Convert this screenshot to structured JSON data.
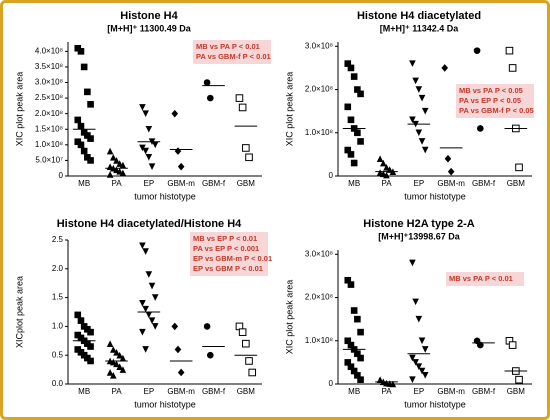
{
  "chart_data": [
    {
      "type": "dot",
      "title": "Histone H4",
      "subtitle": "[M+H]⁺ 11300.49 Da",
      "x_label": "tumor histotype",
      "y_label": "XIC plot peak area",
      "categories": [
        "MB",
        "PA",
        "EP",
        "GBM-m",
        "GBM-f",
        "GBM"
      ],
      "markers": [
        "square",
        "triangle",
        "triangle-down",
        "diamond",
        "circle",
        "open-square"
      ],
      "color": "#000000",
      "points": [
        [
          410000000.0,
          400000000.0,
          350000000.0,
          270000000.0,
          230000000.0,
          180000000.0,
          160000000.0,
          140000000.0,
          130000000.0,
          120000000.0,
          110000000.0,
          100000000.0,
          80000000.0,
          60000000.0,
          50000000.0
        ],
        [
          80000000.0,
          60000000.0,
          50000000.0,
          40000000.0,
          35000000.0,
          30000000.0,
          25000000.0,
          20000000.0,
          15000000.0,
          10000000.0,
          5000000.0
        ],
        [
          220000000.0,
          200000000.0,
          150000000.0,
          110000000.0,
          100000000.0,
          90000000.0,
          80000000.0,
          60000000.0,
          30000000.0
        ],
        [
          200000000.0,
          80000000.0,
          30000000.0
        ],
        [
          300000000.0,
          250000000.0
        ],
        [
          250000000.0,
          220000000.0,
          90000000.0,
          60000000.0
        ]
      ],
      "medians": [
        150000000.0,
        25000000.0,
        110000000.0,
        85000000.0,
        290000000.0,
        160000000.0
      ],
      "ylim": [
        0,
        430000000.0
      ],
      "yticks": [
        0,
        {
          "value": 50000000.0,
          "label": "5.0×10⁷"
        },
        {
          "value": 100000000.0,
          "label": "1.0×10⁸"
        },
        {
          "value": 150000000.0,
          "label": "1.5×10⁸"
        },
        {
          "value": 200000000.0,
          "label": "2.0×10⁸"
        },
        {
          "value": 250000000.0,
          "label": "2.5×10⁸"
        },
        {
          "value": 300000000.0,
          "label": "3.0×10⁸"
        },
        {
          "value": 350000000.0,
          "label": "3.5×10⁸"
        },
        {
          "value": 400000000.0,
          "label": "4.0×10⁸"
        }
      ],
      "annotations": [
        "MB vs PA P < 0.01",
        "PA vs GBM-f P < 0.01"
      ]
    },
    {
      "type": "dot",
      "title": "Histone H4 diacetylated",
      "subtitle": "[M+H]⁺ 11342.4 Da",
      "x_label": "tumor histotype",
      "y_label": "XIC plot peak area",
      "categories": [
        "MB",
        "PA",
        "EP",
        "GBM-m",
        "GBM-f",
        "GBM"
      ],
      "markers": [
        "square",
        "triangle",
        "triangle-down",
        "diamond",
        "circle",
        "open-square"
      ],
      "color": "#000000",
      "points": [
        [
          260000000.0,
          250000000.0,
          230000000.0,
          200000000.0,
          190000000.0,
          160000000.0,
          130000000.0,
          110000000.0,
          100000000.0,
          80000000.0,
          60000000.0,
          50000000.0,
          30000000.0
        ],
        [
          40000000.0,
          30000000.0,
          20000000.0,
          15000000.0,
          10000000.0,
          8000000.0,
          5000000.0,
          2000000.0
        ],
        [
          260000000.0,
          220000000.0,
          200000000.0,
          180000000.0,
          150000000.0,
          130000000.0,
          120000000.0,
          100000000.0,
          80000000.0,
          60000000.0
        ],
        [
          250000000.0,
          40000000.0,
          10000000.0
        ],
        [
          290000000.0,
          110000000.0
        ],
        [
          290000000.0,
          250000000.0,
          110000000.0,
          20000000.0
        ]
      ],
      "medians": [
        110000000.0,
        10000000.0,
        120000000.0,
        65000000.0,
        200000000.0,
        110000000.0
      ],
      "ylim": [
        0,
        310000000.0
      ],
      "yticks": [
        0,
        {
          "value": 100000000.0,
          "label": "1.0×10⁸"
        },
        {
          "value": 200000000.0,
          "label": "2.0×10⁸"
        },
        {
          "value": 300000000.0,
          "label": "3.0×10⁸"
        }
      ],
      "annotations": [
        "MB vs PA P < 0.05",
        "PA vs EP P < 0.05",
        "PA vs GBM-f P < 0.05"
      ]
    },
    {
      "type": "dot",
      "title": "Histone H4 diacetylated/Histone H4",
      "x_label": "tumor histotype",
      "y_label": "XICplot peak area",
      "categories": [
        "MB",
        "PA",
        "EP",
        "GBM-m",
        "GBM-f",
        "GBM"
      ],
      "markers": [
        "square",
        "triangle",
        "triangle-down",
        "diamond",
        "circle",
        "open-square"
      ],
      "color": "#000000",
      "points": [
        [
          1.2,
          1.1,
          1.0,
          0.95,
          0.9,
          0.85,
          0.8,
          0.75,
          0.7,
          0.65,
          0.6,
          0.55,
          0.5,
          0.45,
          0.4
        ],
        [
          0.7,
          0.6,
          0.55,
          0.5,
          0.45,
          0.4,
          0.38,
          0.35,
          0.3,
          0.25,
          0.2,
          0.15
        ],
        [
          2.4,
          2.3,
          1.9,
          1.7,
          1.5,
          1.4,
          1.3,
          1.2,
          1.1,
          1.0,
          0.9,
          0.6
        ],
        [
          1.0,
          0.6,
          0.2
        ],
        [
          1.0,
          0.5
        ],
        [
          1.0,
          0.9,
          0.7,
          0.4,
          0.2
        ]
      ],
      "medians": [
        0.75,
        0.4,
        1.25,
        0.4,
        0.65,
        0.5
      ],
      "ylim": [
        0,
        2.5
      ],
      "yticks": [
        {
          "value": 0,
          "label": "0.0"
        },
        0.5,
        {
          "value": 1,
          "label": "1.0"
        },
        1.5,
        {
          "value": 2,
          "label": "2.0"
        },
        2.5
      ],
      "annotations": [
        "MB vs EP P < 0.01",
        "PA vs EP P < 0.001",
        "EP vs GBM-m P < 0.01",
        "EP vs GBM P < 0.01"
      ]
    },
    {
      "type": "dot",
      "title": "Histone H2A type 2-A",
      "subtitle": "[M+H]⁺13998.67 Da",
      "x_label": "tumor histotype",
      "y_label": "XIC plot peak area",
      "categories": [
        "MB",
        "PA",
        "EP",
        "GBM-m",
        "GBM-f",
        "GBM"
      ],
      "markers": [
        "square",
        "triangle",
        "triangle-down",
        "diamond",
        "circle",
        "open-square"
      ],
      "color": "#000000",
      "points": [
        [
          240000000.0,
          230000000.0,
          170000000.0,
          150000000.0,
          120000000.0,
          100000000.0,
          90000000.0,
          80000000.0,
          70000000.0,
          60000000.0,
          50000000.0,
          40000000.0,
          30000000.0,
          20000000.0,
          10000000.0
        ],
        [
          10000000.0,
          5000000.0,
          2000000.0,
          1000000.0,
          0
        ],
        [
          280000000.0,
          190000000.0,
          150000000.0,
          100000000.0,
          80000000.0,
          60000000.0,
          50000000.0,
          40000000.0,
          30000000.0,
          20000000.0,
          10000000.0
        ],
        [],
        [
          100000000.0,
          90000000.0
        ],
        [
          100000000.0,
          90000000.0,
          30000000.0,
          10000000.0
        ]
      ],
      "medians": [
        80000000.0,
        5000000.0,
        70000000.0,
        null,
        95000000.0,
        30000000.0
      ],
      "ylim": [
        0,
        310000000.0
      ],
      "yticks": [
        0,
        {
          "value": 100000000.0,
          "label": "1.0×10⁸"
        },
        {
          "value": 200000000.0,
          "label": "2.0×10⁸"
        },
        {
          "value": 300000000.0,
          "label": "3.0×10⁸"
        }
      ],
      "annotations": [
        "MB vs PA P < 0.01"
      ]
    }
  ]
}
